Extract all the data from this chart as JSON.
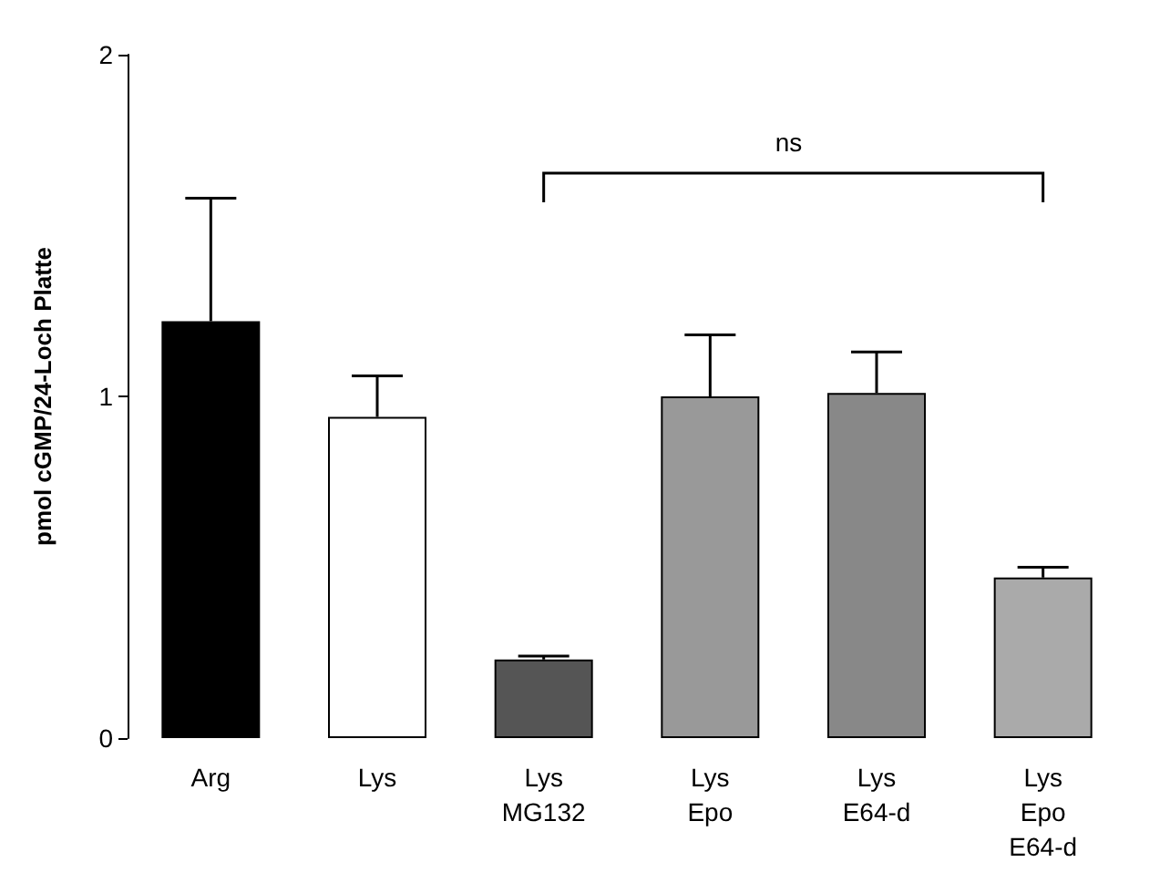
{
  "chart_data": {
    "type": "bar",
    "ylabel": "pmol cGMP/24-Loch Platte",
    "categories": [
      "Arg",
      "Lys",
      "Lys\nMG132",
      "Lys\nEpo",
      "Lys\nE64-d",
      "Lys\nEpo\nE64-d"
    ],
    "values": [
      1.22,
      0.94,
      0.23,
      1.0,
      1.01,
      0.47
    ],
    "colors": [
      "#000000",
      "#ffffff",
      "#555555",
      "#999999",
      "#888888",
      "#aaaaaa"
    ],
    "errors": [
      [
        1.22,
        1.58
      ],
      [
        0.94,
        1.06
      ],
      [
        0.23,
        0.24
      ],
      [
        1.0,
        1.18
      ],
      [
        1.01,
        1.13
      ],
      [
        0.47,
        0.5
      ]
    ],
    "ylim": [
      0,
      2
    ],
    "yticks": [
      0,
      1,
      2
    ],
    "grid": false,
    "annotations": [
      "ns"
    ]
  }
}
